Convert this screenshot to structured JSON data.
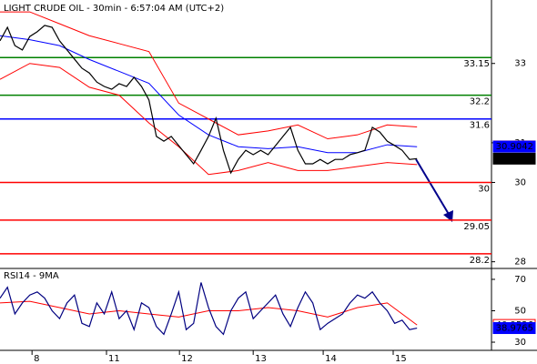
{
  "chart_data": [
    {
      "type": "line",
      "title": "LIGHT CRUDE OIL - 30min - 6:57:04 AM (UTC+2)",
      "x": [
        0,
        1,
        2,
        3,
        4,
        5,
        6,
        7,
        8,
        9,
        10,
        11,
        12,
        13,
        14,
        15,
        16,
        17,
        18,
        19,
        20,
        21,
        22,
        23,
        24,
        25,
        26,
        27,
        28,
        29,
        30,
        31,
        32,
        33,
        34,
        35,
        36,
        37,
        38,
        39,
        40,
        41,
        42,
        43,
        44,
        45,
        46,
        47,
        48,
        49,
        50,
        51,
        52,
        53,
        54,
        55,
        56
      ],
      "values": [
        33.57,
        33.91,
        33.45,
        33.34,
        33.68,
        33.8,
        33.96,
        33.91,
        33.57,
        33.34,
        33.11,
        32.88,
        32.76,
        32.53,
        32.42,
        32.35,
        32.49,
        32.42,
        32.65,
        32.42,
        32.08,
        31.16,
        31.04,
        31.16,
        30.93,
        30.7,
        30.47,
        30.81,
        31.16,
        31.62,
        30.81,
        30.24,
        30.58,
        30.81,
        30.7,
        30.81,
        30.7,
        30.93,
        31.16,
        31.39,
        30.81,
        30.47,
        30.47,
        30.58,
        30.47,
        30.58,
        30.58,
        30.7,
        30.75,
        30.81,
        31.39,
        31.27,
        31.04,
        30.93,
        30.81,
        30.58,
        30.6
      ],
      "color": "#000000",
      "overlays": [
        {
          "color": "#0000ff",
          "x": [
            0,
            4,
            8,
            12,
            16,
            20,
            24,
            28,
            32,
            36,
            40,
            44,
            48,
            52,
            56
          ],
          "values": [
            33.7,
            33.6,
            33.45,
            33.1,
            32.8,
            32.5,
            31.7,
            31.2,
            30.9,
            30.85,
            30.9,
            30.75,
            30.75,
            30.95,
            30.9
          ]
        },
        {
          "color": "#ff0000",
          "x": [
            0,
            4,
            8,
            12,
            16,
            20,
            24,
            28,
            32,
            36,
            40,
            44,
            48,
            52,
            56
          ],
          "values": [
            34.3,
            34.3,
            34.0,
            33.7,
            33.5,
            33.3,
            32.0,
            31.6,
            31.2,
            31.3,
            31.45,
            31.1,
            31.2,
            31.45,
            31.4
          ]
        },
        {
          "color": "#ff0000",
          "x": [
            0,
            4,
            8,
            12,
            16,
            20,
            24,
            28,
            32,
            36,
            40,
            44,
            48,
            52,
            56
          ],
          "values": [
            32.6,
            33.0,
            32.9,
            32.4,
            32.2,
            31.5,
            30.9,
            30.2,
            30.3,
            30.5,
            30.3,
            30.3,
            30.4,
            30.5,
            30.45
          ]
        }
      ],
      "levels": [
        {
          "value": 33.15,
          "color": "#008000"
        },
        {
          "value": 32.2,
          "color": "#008000"
        },
        {
          "value": 31.6,
          "color": "#0000ff"
        },
        {
          "value": 30,
          "color": "#ff0000"
        },
        {
          "value": 29.05,
          "color": "#ff0000"
        },
        {
          "value": 28.2,
          "color": "#ff0000"
        }
      ],
      "tags": [
        {
          "value": 30.907,
          "color": "#ff0000",
          "filled": false
        },
        {
          "value": 30.9042,
          "color": "#0000ff",
          "filled": true
        },
        {
          "value": 30.6,
          "color": "#000000",
          "filled": true
        }
      ],
      "xlim": [
        0,
        66
      ],
      "ylim": [
        27.9,
        34.6
      ],
      "yticks": [
        33,
        31,
        30,
        28
      ]
    },
    {
      "type": "line",
      "title": "RSI14 - 9MA",
      "x": [
        0,
        1,
        2,
        3,
        4,
        5,
        6,
        7,
        8,
        9,
        10,
        11,
        12,
        13,
        14,
        15,
        16,
        17,
        18,
        19,
        20,
        21,
        22,
        23,
        24,
        25,
        26,
        27,
        28,
        29,
        30,
        31,
        32,
        33,
        34,
        35,
        36,
        37,
        38,
        39,
        40,
        41,
        42,
        43,
        44,
        45,
        46,
        47,
        48,
        49,
        50,
        51,
        52,
        53,
        54,
        55,
        56
      ],
      "values": [
        58,
        65,
        48,
        55,
        60,
        62,
        58,
        50,
        45,
        55,
        60,
        42,
        40,
        55,
        48,
        62,
        45,
        50,
        38,
        55,
        52,
        40,
        35,
        48,
        62,
        38,
        42,
        68,
        52,
        40,
        35,
        50,
        58,
        62,
        45,
        50,
        55,
        60,
        48,
        40,
        52,
        62,
        55,
        38,
        42,
        45,
        48,
        55,
        60,
        58,
        62,
        55,
        50,
        42,
        44,
        38,
        38.9765
      ],
      "color": "#000080",
      "overlays": [
        {
          "color": "#ff0000",
          "x": [
            0,
            4,
            8,
            12,
            16,
            20,
            24,
            28,
            32,
            36,
            40,
            44,
            48,
            52,
            56
          ],
          "values": [
            55,
            56,
            52,
            48,
            50,
            48,
            46,
            50,
            50,
            52,
            50,
            46,
            52,
            55,
            40.9526
          ]
        }
      ],
      "tags": [
        {
          "value": 40.9526,
          "color": "#ff0000",
          "filled": false
        },
        {
          "value": 38.9765,
          "color": "#0000ff",
          "filled": true
        }
      ],
      "xlim": [
        0,
        66
      ],
      "ylim": [
        24.8,
        75.2
      ],
      "yticks": [
        70,
        50,
        30
      ],
      "xticks": [
        {
          "value": 4.3,
          "label": "8"
        },
        {
          "value": 14.3,
          "label": "11"
        },
        {
          "value": 24.1,
          "label": "12"
        },
        {
          "value": 34,
          "label": "13"
        },
        {
          "value": 43.4,
          "label": "14"
        },
        {
          "value": 52.8,
          "label": "15"
        }
      ]
    }
  ]
}
